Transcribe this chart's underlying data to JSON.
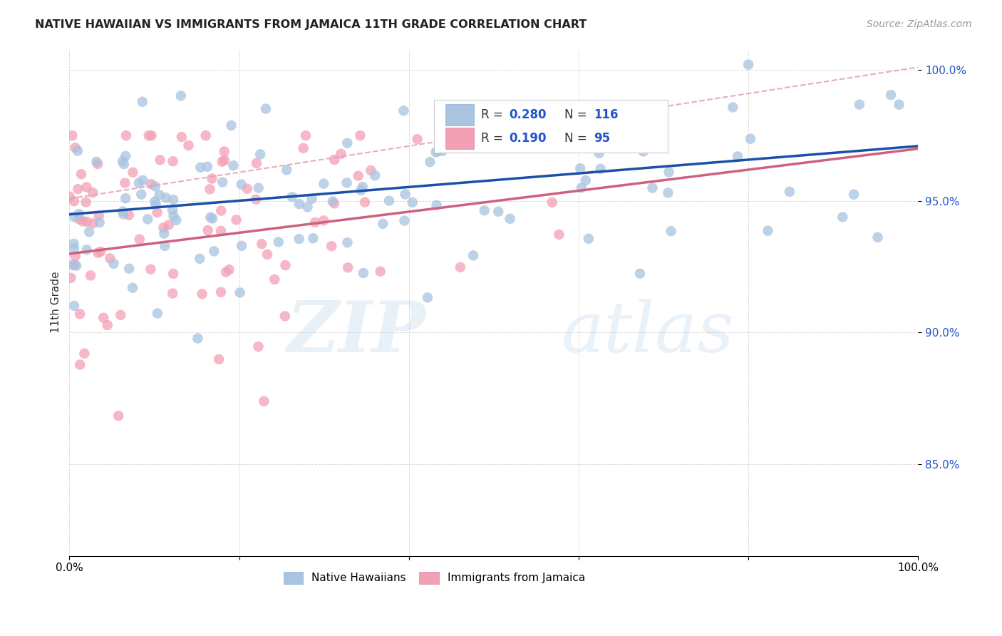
{
  "title": "NATIVE HAWAIIAN VS IMMIGRANTS FROM JAMAICA 11TH GRADE CORRELATION CHART",
  "source": "Source: ZipAtlas.com",
  "ylabel": "11th Grade",
  "xlim": [
    0.0,
    1.0
  ],
  "ylim": [
    0.815,
    1.008
  ],
  "yticks": [
    0.85,
    0.9,
    0.95,
    1.0
  ],
  "ytick_labels": [
    "85.0%",
    "90.0%",
    "95.0%",
    "100.0%"
  ],
  "xticks": [
    0.0,
    0.2,
    0.4,
    0.6,
    0.8,
    1.0
  ],
  "xtick_labels": [
    "0.0%",
    "",
    "",
    "",
    "",
    "100.0%"
  ],
  "blue_R": 0.28,
  "blue_N": 116,
  "pink_R": 0.19,
  "pink_N": 95,
  "blue_color": "#a8c4e0",
  "pink_color": "#f4a0b4",
  "blue_line_color": "#1a4faa",
  "pink_line_color": "#d06080",
  "pink_dash_color": "#e0a0b8",
  "legend_label_blue": "Native Hawaiians",
  "legend_label_pink": "Immigrants from Jamaica",
  "watermark_zip": "ZIP",
  "watermark_atlas": "atlas",
  "background_color": "#ffffff",
  "blue_line_start_y": 0.945,
  "blue_line_end_y": 0.971,
  "pink_line_start_y": 0.93,
  "pink_line_end_y": 0.97,
  "dash_line_start_y": 0.951,
  "dash_line_end_y": 1.001
}
